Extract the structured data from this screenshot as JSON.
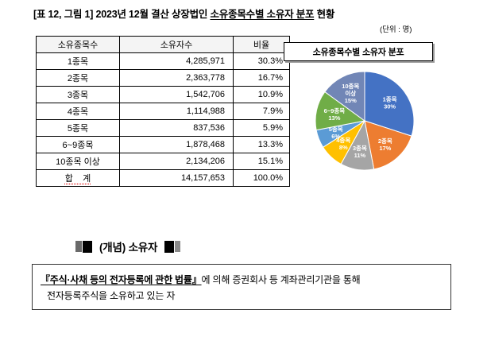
{
  "title": {
    "prefix": "[표 12, 그림 1] 2023년 12월 결산 상장법인 ",
    "underlined": "소유종목수별 소유자 분포",
    "suffix": " 현황"
  },
  "unit_note": "(단위 : 명)",
  "table": {
    "headers": [
      "소유종목수",
      "소유자수",
      "비율"
    ],
    "rows": [
      [
        "1종목",
        "4,285,971",
        "30.3%"
      ],
      [
        "2종목",
        "2,363,778",
        "16.7%"
      ],
      [
        "3종목",
        "1,542,706",
        "10.9%"
      ],
      [
        "4종목",
        "1,114,988",
        "7.9%"
      ],
      [
        "5종목",
        "837,536",
        "5.9%"
      ],
      [
        "6~9종목",
        "1,878,468",
        "13.3%"
      ],
      [
        "10종목 이상",
        "2,134,206",
        "15.1%"
      ],
      [
        "합    계",
        "14,157,653",
        "100.0%"
      ]
    ]
  },
  "chart_data": {
    "type": "pie",
    "title": "소유종목수별 소유자 분포",
    "labels": [
      "1종목",
      "2종목",
      "3종목",
      "4종목",
      "5종목",
      "6~9종목",
      "10종목 이상"
    ],
    "values": [
      30,
      17,
      11,
      8,
      6,
      13,
      15
    ],
    "unit": "%",
    "legend": "none",
    "colors": [
      "#4472C4",
      "#ED7D31",
      "#A5A5A5",
      "#FFC000",
      "#5B9BD5",
      "#70AD47",
      "#7186B6"
    ]
  },
  "concept": {
    "heading": "(개념) 소유자",
    "law": "『주식·사채 등의 전자등록에 관한 법률』",
    "line1_rest": "에 의해 증권회사 등 계좌관리기관을 통해",
    "line2": "전자등록주식을 소유하고 있는 자"
  }
}
